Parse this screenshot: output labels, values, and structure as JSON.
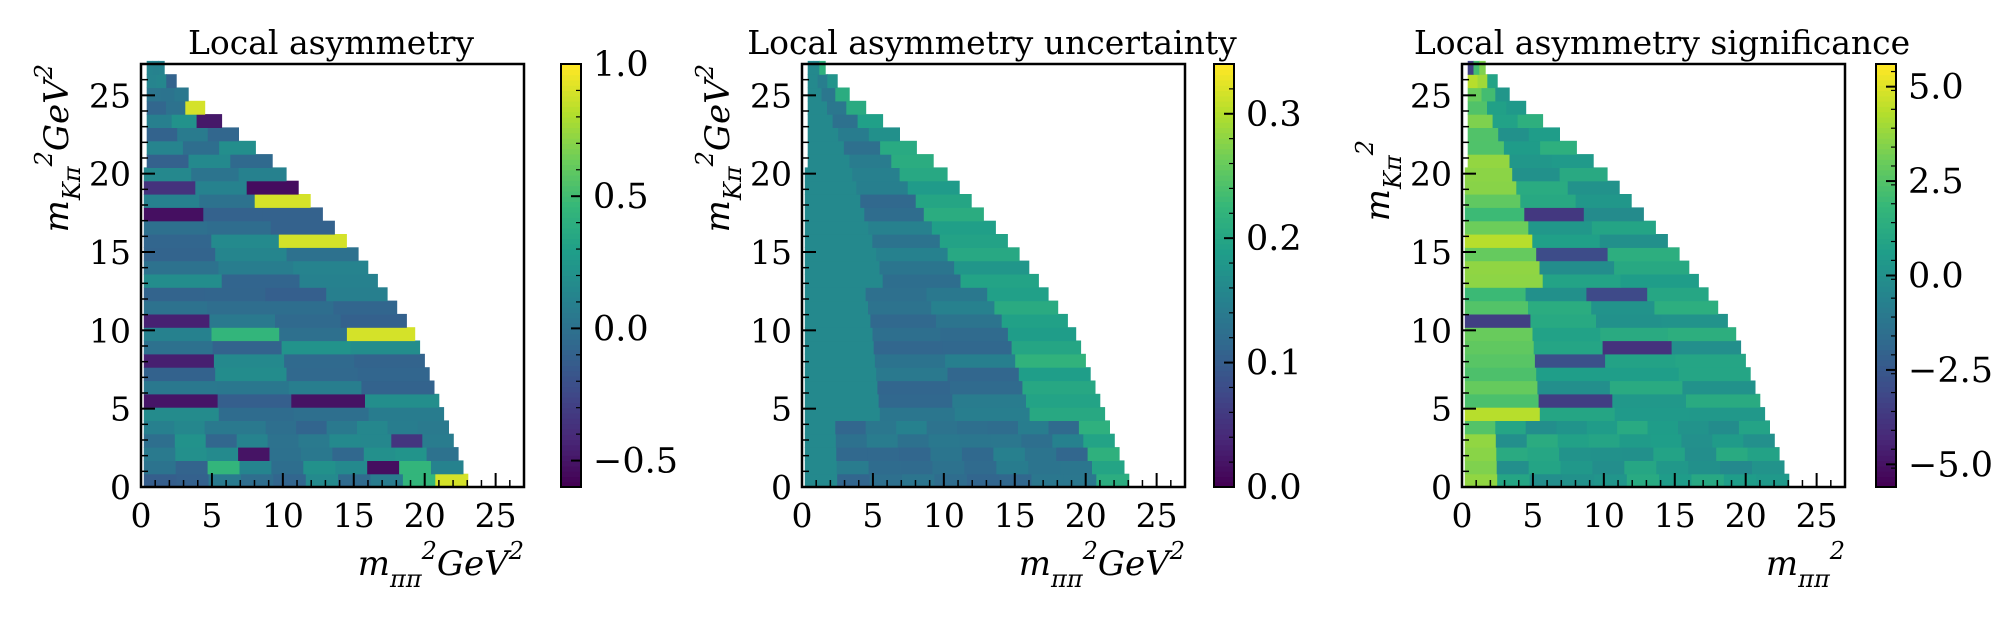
{
  "chart_data": [
    {
      "type": "heatmap",
      "title": "Local asymmetry",
      "xlabel": "m²ππ GeV²",
      "ylabel": "m²Kπ GeV²",
      "xlim": [
        0,
        27
      ],
      "ylim": [
        0,
        27
      ],
      "xticks": [
        "0",
        "5",
        "10",
        "15",
        "20",
        "25"
      ],
      "yticks": [
        "0",
        "5",
        "10",
        "15",
        "20",
        "25"
      ],
      "colorbar": {
        "colormap": "viridis",
        "range": [
          -0.6,
          1.0
        ],
        "ticks": [
          "−0.5",
          "0.0",
          "0.5",
          "1.0"
        ],
        "tick_values": [
          -0.5,
          0.0,
          0.5,
          1.0
        ]
      },
      "grid": false,
      "domain_note_values": {
        "boundary_x_at_y": [
          [
            0,
            23
          ],
          [
            5,
            21
          ],
          [
            10,
            19
          ],
          [
            15,
            15
          ],
          [
            20,
            10
          ],
          [
            25,
            3
          ],
          [
            27,
            1
          ]
        ]
      }
    },
    {
      "type": "heatmap",
      "title": "Local asymmetry uncertainty",
      "xlabel": "m²ππ GeV²",
      "ylabel": "m²Kπ GeV²",
      "xlim": [
        0,
        27
      ],
      "ylim": [
        0,
        27
      ],
      "xticks": [
        "0",
        "5",
        "10",
        "15",
        "20",
        "25"
      ],
      "yticks": [
        "0",
        "5",
        "10",
        "15",
        "20",
        "25"
      ],
      "colorbar": {
        "colormap": "viridis",
        "range": [
          0.0,
          0.34
        ],
        "ticks": [
          "0.0",
          "0.1",
          "0.2",
          "0.3"
        ],
        "tick_values": [
          0.0,
          0.1,
          0.2,
          0.3
        ]
      },
      "grid": false
    },
    {
      "type": "heatmap",
      "title": "Local asymmetry significance",
      "xlabel": "m²ππ",
      "ylabel": "m²Kπ",
      "xlim": [
        0,
        27
      ],
      "ylim": [
        0,
        27
      ],
      "xticks": [
        "0",
        "5",
        "10",
        "15",
        "20",
        "25"
      ],
      "yticks": [
        "0",
        "5",
        "10",
        "15",
        "20",
        "25"
      ],
      "colorbar": {
        "colormap": "viridis",
        "range": [
          -5.6,
          5.6
        ],
        "ticks": [
          "−5.0",
          "−2.5",
          "0.0",
          "2.5",
          "5.0"
        ],
        "tick_values": [
          -5.0,
          -2.5,
          0.0,
          2.5,
          5.0
        ]
      },
      "grid": false
    }
  ]
}
